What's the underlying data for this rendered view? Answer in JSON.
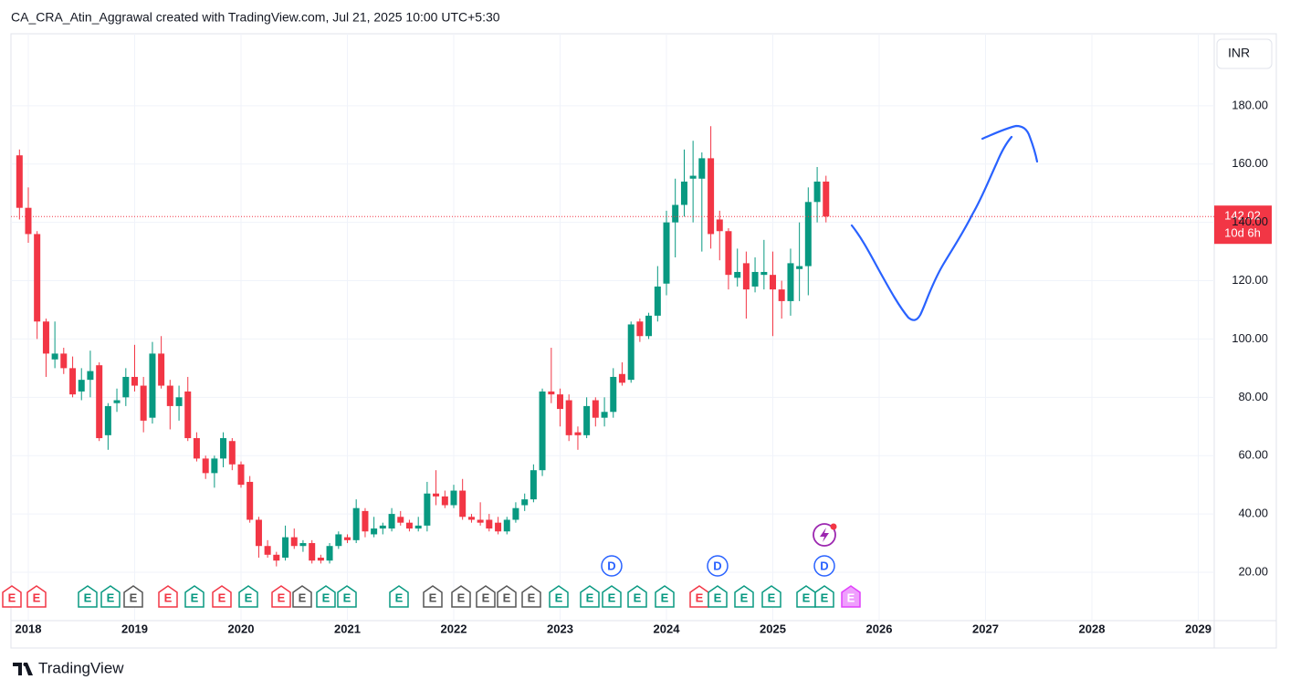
{
  "chart_data": {
    "type": "candlestick",
    "title": "CA_CRA_Atin_Aggrawal created with TradingView.com, Jul 21, 2025 10:00 UTC+5:30",
    "currency": "INR",
    "brand": "TradingView",
    "countdown": "10d 6h",
    "up_color": "#089981",
    "down_color": "#f23645",
    "grid": true,
    "x": [
      2017.917,
      2018,
      2018.083,
      2018.167,
      2018.25,
      2018.333,
      2018.417,
      2018.5,
      2018.583,
      2018.667,
      2018.75,
      2018.833,
      2018.917,
      2019,
      2019.083,
      2019.167,
      2019.25,
      2019.333,
      2019.417,
      2019.5,
      2019.583,
      2019.667,
      2019.75,
      2019.833,
      2019.917,
      2020,
      2020.083,
      2020.167,
      2020.25,
      2020.333,
      2020.417,
      2020.5,
      2020.583,
      2020.667,
      2020.75,
      2020.833,
      2020.917,
      2021,
      2021.083,
      2021.167,
      2021.25,
      2021.333,
      2021.417,
      2021.5,
      2021.583,
      2021.667,
      2021.75,
      2021.833,
      2021.917,
      2022,
      2022.083,
      2022.167,
      2022.25,
      2022.333,
      2022.417,
      2022.5,
      2022.583,
      2022.667,
      2022.75,
      2022.833,
      2022.917,
      2023,
      2023.083,
      2023.167,
      2023.25,
      2023.333,
      2023.417,
      2023.5,
      2023.583,
      2023.667,
      2023.75,
      2023.833,
      2023.917,
      2024,
      2024.083,
      2024.167,
      2024.25,
      2024.333,
      2024.417,
      2024.5,
      2024.583,
      2024.667,
      2024.75,
      2024.833,
      2024.917,
      2025,
      2025.083,
      2025.167,
      2025.25,
      2025.333,
      2025.417,
      2025.5
    ],
    "open": [
      163,
      145,
      136,
      106,
      93,
      95,
      90,
      82,
      86,
      91,
      67,
      78,
      80,
      87,
      84,
      73,
      95,
      84,
      77,
      82,
      66,
      59,
      54,
      59,
      65,
      57,
      51,
      38,
      29,
      26,
      25,
      32,
      29,
      30,
      25,
      24,
      29,
      32,
      31,
      41,
      33,
      35,
      35,
      39,
      37,
      35,
      36,
      47,
      46,
      43,
      48,
      39,
      38,
      38,
      37,
      34,
      38,
      43,
      45,
      55,
      82,
      81,
      79,
      68,
      67,
      79,
      73,
      75,
      88,
      86,
      106,
      101,
      108,
      119,
      140,
      146,
      155,
      155,
      162,
      141,
      137,
      121,
      126,
      118,
      122,
      122,
      117,
      113,
      124,
      125,
      147,
      154
    ],
    "high": [
      165,
      152,
      137,
      107,
      106,
      97,
      94,
      90,
      96,
      92,
      78,
      83,
      90,
      98,
      87,
      99,
      101,
      86,
      84,
      87,
      68,
      60,
      60,
      68,
      66,
      58,
      53,
      39,
      31,
      27,
      36,
      35,
      31,
      31,
      26,
      30,
      34,
      33,
      45,
      42,
      39,
      37,
      42,
      41,
      38,
      39,
      51,
      55,
      48,
      50,
      52,
      40,
      44,
      40,
      39,
      39,
      44,
      47,
      57,
      83,
      97,
      83,
      81,
      70,
      80,
      80,
      80,
      90,
      92,
      106,
      107,
      109,
      125,
      144,
      155,
      165,
      168,
      164,
      173,
      144,
      138,
      131,
      130,
      128,
      134,
      130,
      120,
      131,
      140,
      152,
      159,
      156
    ],
    "low": [
      141,
      133,
      100,
      87,
      90,
      88,
      80,
      79,
      80,
      65,
      62,
      75,
      77,
      82,
      68,
      71,
      83,
      69,
      72,
      65,
      58,
      52,
      49,
      56,
      55,
      49,
      37,
      25,
      25,
      22,
      24,
      28,
      27,
      23,
      23,
      23,
      28,
      30,
      30,
      32,
      32,
      33,
      34,
      36,
      34,
      34,
      34,
      43,
      42,
      42,
      38,
      37,
      36,
      34,
      33,
      33,
      37,
      41,
      44,
      53,
      78,
      70,
      65,
      62,
      66,
      70,
      70,
      73,
      84,
      85,
      99,
      100,
      106,
      115,
      128,
      142,
      140,
      130,
      131,
      127,
      117,
      118,
      107,
      116,
      117,
      101,
      107,
      108,
      113,
      115,
      140,
      140
    ],
    "close": [
      145,
      136,
      106,
      95,
      95,
      90,
      81,
      86,
      89,
      66,
      77,
      79,
      87,
      84,
      72,
      95,
      84,
      77,
      80,
      66,
      59,
      54,
      59,
      66,
      57,
      50,
      38,
      29,
      26,
      24,
      32,
      29,
      30,
      24,
      24,
      29,
      33,
      31,
      42,
      34,
      35,
      36,
      40,
      37,
      35,
      36,
      47,
      46,
      43,
      48,
      39,
      38,
      37,
      35,
      34,
      38,
      42,
      45,
      55,
      82,
      81,
      76,
      67,
      67,
      77,
      73,
      75,
      87,
      85,
      105,
      101,
      108,
      118,
      140,
      146,
      154,
      156,
      162,
      136,
      137,
      122,
      123,
      117,
      123,
      123,
      117,
      113,
      126,
      125,
      147,
      154,
      142.02
    ],
    "xlim": [
      2017.837,
      2029.15
    ],
    "xticks": [
      2018,
      2019,
      2020,
      2021,
      2022,
      2023,
      2024,
      2025,
      2026,
      2027,
      2028,
      2029
    ],
    "ylim": [
      3.4,
      204.7
    ],
    "yticks": [
      {
        "value": 20,
        "label": "20.00"
      },
      {
        "value": 40,
        "label": "40.00"
      },
      {
        "value": 60,
        "label": "60.00"
      },
      {
        "value": 80,
        "label": "80.00"
      },
      {
        "value": 100,
        "label": "100.00"
      },
      {
        "value": 120,
        "label": "120.00"
      },
      {
        "value": 140,
        "label": "140.00"
      },
      {
        "value": 160,
        "label": "160.00"
      },
      {
        "value": 180,
        "label": "180.00"
      }
    ],
    "events": [
      {
        "label": "E",
        "color": "#f23645"
      },
      {
        "label": "E",
        "color": "#f23645"
      },
      {
        "label": "E",
        "color": "#089981"
      },
      {
        "label": "E",
        "color": "#089981"
      },
      {
        "label": "E",
        "color": "#555555"
      },
      {
        "label": "E",
        "color": "#f23645"
      },
      {
        "label": "E",
        "color": "#089981"
      },
      {
        "label": "E",
        "color": "#f23645"
      },
      {
        "label": "E",
        "color": "#089981"
      },
      {
        "label": "E",
        "color": "#f23645"
      },
      {
        "label": "E",
        "color": "#555555"
      },
      {
        "label": "E",
        "color": "#089981"
      },
      {
        "label": "E",
        "color": "#089981"
      },
      {
        "label": "E",
        "color": "#089981"
      },
      {
        "label": "E",
        "color": "#555555"
      },
      {
        "label": "E",
        "color": "#555555"
      },
      {
        "label": "E",
        "color": "#555555"
      },
      {
        "label": "E",
        "color": "#555555"
      },
      {
        "label": "E",
        "color": "#555555"
      },
      {
        "label": "E",
        "color": "#089981"
      },
      {
        "label": "E",
        "color": "#089981"
      },
      {
        "label": "E",
        "color": "#089981"
      },
      {
        "label": "E",
        "color": "#089981"
      },
      {
        "label": "E",
        "color": "#089981"
      },
      {
        "label": "E",
        "color": "#f23645"
      },
      {
        "label": "E",
        "color": "#089981"
      },
      {
        "label": "E",
        "color": "#089981"
      },
      {
        "label": "E",
        "color": "#089981"
      },
      {
        "label": "E",
        "color": "#089981"
      },
      {
        "label": "E",
        "color": "#089981"
      },
      {
        "label": "E",
        "color": "#e040fb"
      }
    ],
    "dividends": [
      {
        "label": "D",
        "color": "#2962ff"
      },
      {
        "label": "D",
        "color": "#2962ff"
      },
      {
        "label": "D",
        "color": "#2962ff"
      }
    ]
  }
}
